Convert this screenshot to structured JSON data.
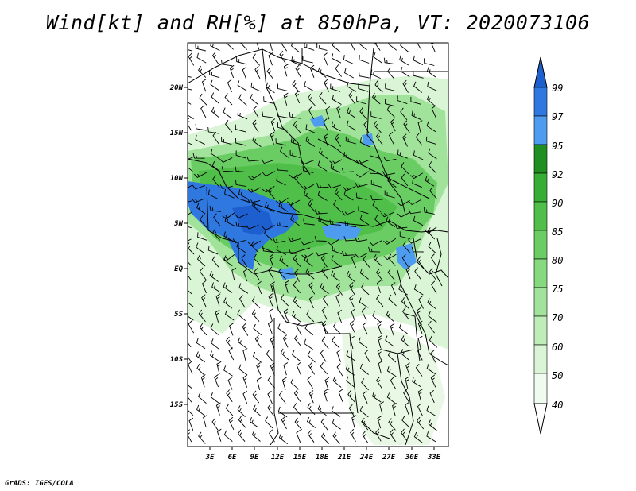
{
  "title": "Wind[kt] and RH[%] at 850hPa, VT: 2020073106",
  "credit": "GrADS: IGES/COLA",
  "map": {
    "lat_labels": [
      "20N",
      "15N",
      "10N",
      "5N",
      "EQ",
      "5S",
      "10S",
      "15S"
    ],
    "lon_labels": [
      "3E",
      "6E",
      "9E",
      "12E",
      "15E",
      "18E",
      "21E",
      "24E",
      "27E",
      "30E",
      "33E"
    ]
  },
  "colorbar": {
    "levels": [
      "40",
      "50",
      "60",
      "70",
      "75",
      "80",
      "85",
      "90",
      "92",
      "95",
      "97",
      "99"
    ],
    "colors": [
      "#f0fbef",
      "#d9f5d5",
      "#bfedb8",
      "#a2e39b",
      "#86d97f",
      "#6acd63",
      "#4fbf49",
      "#36ae33",
      "#208f22",
      "#4d9cf0",
      "#2f78e0",
      "#1e5fd0"
    ]
  }
}
